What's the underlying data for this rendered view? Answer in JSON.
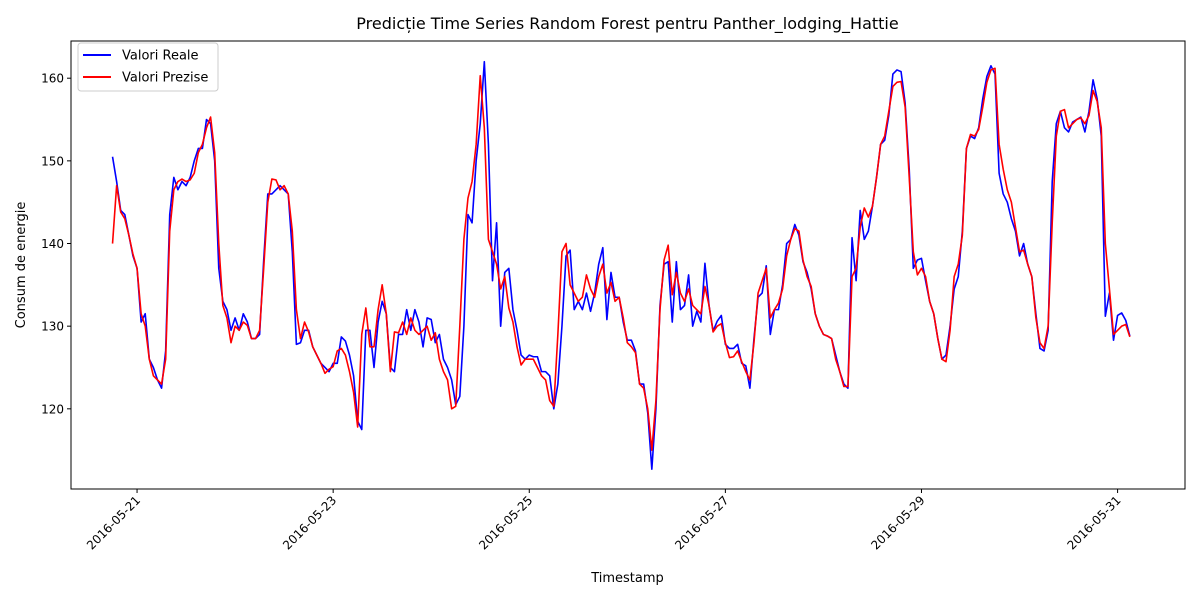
{
  "chart_data": {
    "type": "line",
    "title": "Predicție Time Series Random Forest pentru Panther_lodging_Hattie",
    "xlabel": "Timestamp",
    "ylabel": "Consum de energie",
    "x_ticks": [
      "2016-05-21",
      "2016-05-23",
      "2016-05-25",
      "2016-05-27",
      "2016-05-29",
      "2016-05-31"
    ],
    "y_ticks": [
      120,
      130,
      140,
      150,
      160
    ],
    "xlim": [
      "2016-05-20 07:50",
      "2016-05-31 16:30"
    ],
    "ylim": [
      110.3,
      164.5
    ],
    "legend_position": "upper left",
    "grid": false,
    "x_start": "2016-05-20 18:00",
    "x_step_hours": 1,
    "series": [
      {
        "name": "Valori Reale",
        "color": "#0000ff",
        "values": [
          150.5,
          147.5,
          144,
          143.5,
          141,
          138.5,
          137,
          130.5,
          131.5,
          126,
          125,
          123.5,
          122.5,
          127,
          143.5,
          148,
          146.5,
          147.5,
          147,
          148,
          150,
          151.5,
          151.5,
          155,
          154.5,
          150,
          137,
          133,
          132,
          129.5,
          131,
          129.5,
          131.5,
          130.5,
          128.5,
          128.5,
          129,
          138,
          146,
          146,
          146.5,
          147,
          146.5,
          146,
          139,
          127.8,
          128,
          129.5,
          129.5,
          127.5,
          126.5,
          125.5,
          125,
          124.5,
          125.5,
          125.5,
          128.7,
          128.2,
          126.5,
          124,
          118.5,
          117.5,
          129.5,
          129.5,
          125,
          130.5,
          133,
          131.5,
          125,
          124.5,
          129,
          129,
          132,
          129.5,
          132,
          130.5,
          127.5,
          131,
          130.8,
          128,
          129,
          126,
          125,
          123.5,
          120.5,
          121.5,
          130,
          143.5,
          142.5,
          150,
          154.5,
          162,
          152,
          135.5,
          142.5,
          130,
          136.5,
          137,
          132,
          129.5,
          126.5,
          126,
          126.5,
          126.3,
          126.3,
          124.5,
          124.5,
          124,
          120,
          123,
          130,
          138.5,
          139.2,
          132,
          133,
          132,
          134,
          131.8,
          134,
          137.5,
          139.5,
          130.8,
          136.5,
          133.5,
          133.5,
          130.5,
          128.3,
          128.3,
          127,
          123,
          123,
          119.5,
          112.7,
          120,
          132.5,
          137.5,
          137.8,
          130.5,
          137.8,
          132,
          132.5,
          136.2,
          130,
          131.8,
          130.5,
          137.6,
          132.5,
          129.4,
          130.6,
          131.3,
          127.8,
          127.3,
          127.3,
          127.8,
          125.5,
          125.2,
          122.5,
          128.5,
          133.5,
          134,
          137.3,
          129,
          132,
          132,
          135,
          140,
          140.5,
          142.3,
          141,
          137.8,
          136.5,
          134.5,
          131.5,
          130,
          129,
          128.8,
          128.5,
          126.5,
          124.5,
          123,
          122.5,
          140.7,
          135.5,
          144,
          140.5,
          141.5,
          144.5,
          148,
          152,
          152.5,
          155.5,
          160.5,
          161,
          160.8,
          157,
          149,
          137,
          138,
          138.2,
          135.5,
          133,
          131.5,
          128.5,
          126,
          126.5,
          130,
          134.5,
          136,
          141.5,
          151.5,
          153,
          152.7,
          154,
          157.5,
          160.2,
          161.5,
          160.5,
          148.5,
          146,
          145,
          143,
          141.5,
          138.5,
          140,
          137.5,
          136,
          131.5,
          127.3,
          127,
          129.5,
          147.5,
          154.5,
          156,
          154,
          153.5,
          154.7,
          155,
          155.3,
          153.5,
          156,
          159.8,
          157.5,
          153,
          131.2,
          134,
          128.3,
          131.3,
          131.6,
          130.7,
          128.8
        ]
      },
      {
        "name": "Valori Prezise",
        "color": "#ff0000",
        "values": [
          140,
          147,
          143.8,
          143,
          141,
          138.7,
          137,
          131.5,
          130,
          126,
          124,
          123.5,
          123,
          126,
          141.5,
          146.5,
          147.5,
          147.8,
          147.5,
          147.7,
          148.5,
          151,
          152,
          154,
          155.3,
          151,
          140,
          132.5,
          131,
          128,
          130,
          129.5,
          130.5,
          130.1,
          128.5,
          128.5,
          129.5,
          137,
          145,
          147.8,
          147.7,
          146.5,
          147,
          146,
          141.5,
          132,
          128.5,
          130.5,
          129.3,
          127.5,
          126.5,
          125.5,
          124.3,
          124.8,
          125.1,
          127,
          127.3,
          126.5,
          124.5,
          122,
          117.8,
          129,
          132.2,
          127.5,
          127.5,
          132,
          135,
          131.5,
          124.5,
          129.3,
          129.2,
          130.5,
          129,
          131,
          129.5,
          129,
          129.5,
          130,
          128.3,
          129.2,
          126,
          124.5,
          123.5,
          120,
          120.3,
          130,
          140.5,
          145.5,
          147.5,
          152,
          160.3,
          154,
          140.5,
          139,
          137.5,
          134.5,
          136,
          132.2,
          130.5,
          127.5,
          125.3,
          126,
          126,
          126,
          125,
          124,
          123.5,
          121,
          120.3,
          129,
          139,
          140,
          135,
          134,
          133,
          133.5,
          136.2,
          134.5,
          133.5,
          136,
          137.5,
          134,
          135.3,
          133,
          133.5,
          131,
          128,
          127.5,
          126.8,
          123,
          122.5,
          120,
          115,
          121,
          132,
          138,
          139.8,
          133.8,
          136.5,
          134,
          133,
          134.5,
          132.5,
          132,
          131.5,
          134.8,
          132.5,
          129.3,
          130,
          130.3,
          128,
          126.2,
          126.3,
          127,
          125.7,
          124.5,
          123.5,
          128,
          134,
          135.5,
          137,
          131,
          132,
          132.8,
          134.5,
          138.5,
          140.5,
          141.8,
          141.5,
          138,
          136,
          134.8,
          131.5,
          130,
          129,
          128.8,
          128.5,
          126,
          124.5,
          122.7,
          122.7,
          136,
          137,
          142,
          144.3,
          143.2,
          144.5,
          148,
          152,
          153,
          156,
          159,
          159.5,
          159.6,
          156.5,
          148,
          139,
          136.2,
          137,
          136,
          133,
          131.5,
          128.5,
          126,
          125.7,
          129.5,
          136,
          137.5,
          141,
          151.5,
          153.2,
          153,
          153.8,
          156.5,
          159.5,
          161,
          161.2,
          152,
          149,
          146.5,
          145,
          142,
          139,
          139.2,
          137.5,
          136,
          131,
          128,
          127.3,
          130,
          142.5,
          153,
          156,
          156.2,
          154,
          154.5,
          155,
          155.2,
          154.5,
          155.5,
          158.5,
          157.2,
          154,
          140,
          134.5,
          129,
          129.5,
          130,
          130.2,
          128.7
        ]
      }
    ]
  }
}
